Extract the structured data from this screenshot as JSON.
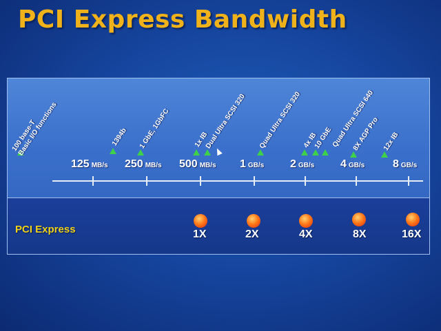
{
  "title": "PCI Express Bandwidth",
  "scale": [
    {
      "value": "125",
      "unit": "MB/s"
    },
    {
      "value": "250",
      "unit": "MB/s"
    },
    {
      "value": "500",
      "unit": "MB/s"
    },
    {
      "value": "1",
      "unit": "GB/s"
    },
    {
      "value": "2",
      "unit": "GB/s"
    },
    {
      "value": "4",
      "unit": "GB/s"
    },
    {
      "value": "8",
      "unit": "GB/s"
    }
  ],
  "technologies": [
    {
      "line1": "100 base-T",
      "line2": "Basic I/O functions"
    },
    {
      "line1": "1394b"
    },
    {
      "line1": "1 GbE, 1GbFC"
    },
    {
      "line1": "1x IB"
    },
    {
      "line1": "Dual Ultra SCSI 320"
    },
    {
      "line1": "Quad Ultra SCSI 320"
    },
    {
      "line1": "4x IB"
    },
    {
      "line1": "10 GbE"
    },
    {
      "line1": "Quad Ultra SCSI 640"
    },
    {
      "line1": "8X AGP Pro"
    },
    {
      "line1": "12x IB"
    }
  ],
  "pcie": {
    "label": "PCI Express",
    "lanes": [
      "1X",
      "2X",
      "4X",
      "8X",
      "16X"
    ]
  },
  "colors": {
    "title": "#f0b21a",
    "marker": "#3fd14a",
    "pcie_label": "#f0d21a",
    "dot": "#ff5a14"
  }
}
